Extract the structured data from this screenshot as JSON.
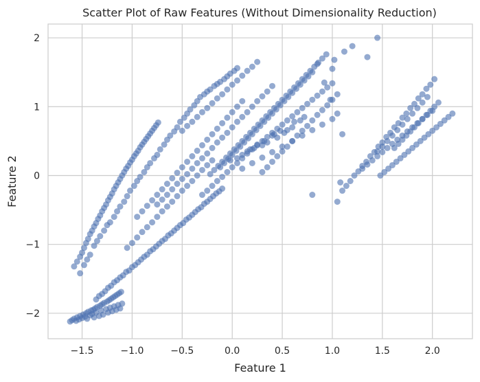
{
  "chart_data": {
    "type": "scatter",
    "title": "Scatter Plot of Raw Features (Without Dimensionality Reduction)",
    "xlabel": "Feature 1",
    "ylabel": "Feature 2",
    "xlim": [
      -1.84,
      2.4
    ],
    "ylim": [
      -2.37,
      2.2
    ],
    "xticks": [
      -1.5,
      -1.0,
      -0.5,
      0.0,
      0.5,
      1.0,
      1.5,
      2.0
    ],
    "xtick_labels": [
      "−1.5",
      "−1.0",
      "−0.5",
      "0.0",
      "0.5",
      "1.0",
      "1.5",
      "2.0"
    ],
    "yticks": [
      -2,
      -1,
      0,
      1,
      2
    ],
    "ytick_labels": [
      "−2",
      "−1",
      "0",
      "1",
      "2"
    ],
    "grid": true,
    "legend": "none",
    "marker_color": "#4c72b0",
    "marker_alpha": 0.6,
    "series": [
      {
        "x": [
          -1.62,
          -1.6,
          -1.58,
          -1.56,
          -1.55,
          -1.53,
          -1.52,
          -1.5,
          -1.49,
          -1.47,
          -1.46,
          -1.45,
          -1.44,
          -1.42,
          -1.41,
          -1.4,
          -1.39,
          -1.38,
          -1.37,
          -1.36,
          -1.35,
          -1.33,
          -1.32,
          -1.31,
          -1.3,
          -1.29,
          -1.28,
          -1.26,
          -1.25,
          -1.24,
          -1.23,
          -1.22,
          -1.21,
          -1.2,
          -1.19,
          -1.18,
          -1.17,
          -1.16,
          -1.15,
          -1.14,
          -1.13,
          -1.12,
          -1.11,
          -1.1,
          -1.58,
          -1.55,
          -1.52,
          -1.5,
          -1.48,
          -1.46,
          -1.44,
          -1.42,
          -1.4,
          -1.38,
          -1.36,
          -1.34,
          -1.32,
          -1.3,
          -1.28,
          -1.26,
          -1.24,
          -1.22,
          -1.2,
          -1.18,
          -1.16,
          -1.14,
          -1.12,
          -1.1,
          -1.08,
          -1.06,
          -1.04,
          -1.02,
          -1.0,
          -0.98,
          -0.96,
          -0.94,
          -0.92,
          -0.9,
          -0.88,
          -0.86,
          -0.84,
          -0.82,
          -0.8,
          -0.78,
          -0.76,
          -0.74,
          -1.36,
          -1.33,
          -1.3,
          -1.27,
          -1.24,
          -1.21,
          -1.18,
          -1.15,
          -1.12,
          -1.09,
          -1.06,
          -1.03,
          -1.0,
          -0.97,
          -0.94,
          -0.91,
          -0.88,
          -0.85,
          -0.82,
          -0.79,
          -0.76,
          -0.73,
          -0.7,
          -0.67,
          -0.64,
          -0.61,
          -0.58,
          -0.55,
          -0.52,
          -0.49,
          -0.46,
          -0.43,
          -0.4,
          -0.37,
          -0.34,
          -0.31,
          -0.28,
          -0.25,
          -0.22,
          -0.19,
          -0.16,
          -0.13,
          -0.1,
          -1.52,
          -1.48,
          -1.45,
          -1.42,
          -1.38,
          -1.35,
          -1.32,
          -1.28,
          -1.25,
          -1.22,
          -1.18,
          -1.15,
          -1.12,
          -1.08,
          -1.05,
          -1.02,
          -0.98,
          -0.95,
          -0.92,
          -0.88,
          -0.85,
          -0.82,
          -0.78,
          -0.75,
          -0.72,
          -0.68,
          -0.65,
          -0.62,
          -0.58,
          -0.55,
          -0.52,
          -0.48,
          -0.45,
          -0.42,
          -0.38,
          -0.35,
          -0.32,
          -0.28,
          -0.25,
          -0.22,
          -0.18,
          -0.15,
          -0.12,
          -0.08,
          -0.05,
          -0.02,
          0.02,
          0.05,
          -0.3,
          -0.25,
          -0.2,
          -0.15,
          -0.1,
          -0.05,
          0.0,
          0.05,
          0.1,
          0.15,
          0.2,
          0.25,
          0.3,
          0.35,
          0.4,
          0.45,
          0.5,
          0.55,
          0.6,
          0.65,
          0.7,
          0.75,
          0.8,
          0.85,
          0.9,
          0.95,
          1.0,
          -0.22,
          -0.18,
          -0.14,
          -0.1,
          -0.06,
          -0.02,
          0.02,
          0.06,
          0.1,
          0.14,
          0.18,
          0.22,
          0.26,
          0.3,
          0.34,
          0.38,
          0.42,
          0.46,
          0.5,
          0.54,
          0.58,
          0.62,
          0.66,
          0.7,
          0.74,
          0.78,
          0.82,
          0.86,
          0.9,
          0.94,
          -0.12,
          -0.08,
          -0.04,
          0.0,
          0.04,
          0.08,
          0.12,
          0.16,
          0.2,
          0.24,
          0.28,
          0.32,
          0.36,
          0.4,
          0.44,
          0.48,
          0.52,
          0.56,
          0.6,
          0.64,
          0.68,
          0.72,
          0.76,
          0.8,
          -0.5,
          -0.45,
          -0.4,
          -0.35,
          -0.3,
          -0.25,
          -0.2,
          -0.15,
          -0.1,
          -0.05,
          0.0,
          0.05,
          0.1,
          0.15,
          0.2,
          0.25,
          0.3,
          0.35,
          0.4,
          0.45,
          0.5,
          0.55,
          0.6,
          0.65,
          0.7,
          0.75,
          0.8,
          0.85,
          0.9,
          0.95,
          1.0,
          1.05,
          -0.75,
          -0.7,
          -0.65,
          -0.6,
          -0.55,
          -0.5,
          -0.45,
          -0.4,
          -0.35,
          -0.3,
          -0.25,
          -0.2,
          -0.15,
          -0.1,
          -0.05,
          0.0,
          0.05,
          0.1,
          0.15,
          0.2,
          0.25,
          0.3,
          0.35,
          0.4,
          -0.95,
          -0.9,
          -0.85,
          -0.8,
          -0.75,
          -0.7,
          -0.65,
          -0.6,
          -0.55,
          -0.5,
          -0.45,
          -0.4,
          -0.35,
          -0.3,
          -0.25,
          -0.2,
          -0.15,
          -0.1,
          -0.05,
          0.0,
          0.05,
          0.1,
          -1.05,
          -1.0,
          -0.95,
          -0.9,
          -0.85,
          -0.8,
          -0.75,
          -0.7,
          -0.65,
          -0.6,
          -0.55,
          -0.5,
          -0.45,
          -0.4,
          -0.35,
          -0.3,
          -0.25,
          -0.2,
          0.1,
          0.2,
          0.3,
          0.4,
          0.5,
          0.6,
          0.7,
          0.8,
          0.9,
          1.0,
          1.05,
          0.98,
          0.92,
          0.85,
          1.48,
          1.52,
          1.56,
          1.6,
          1.64,
          1.68,
          1.72,
          1.76,
          1.8,
          1.84,
          1.88,
          1.92,
          1.96,
          2.0,
          2.04,
          2.08,
          2.12,
          2.16,
          2.2,
          1.3,
          1.35,
          1.4,
          1.45,
          1.5,
          1.55,
          1.6,
          1.65,
          1.7,
          1.75,
          1.8,
          1.85,
          1.9,
          1.95,
          2.0,
          1.1,
          1.14,
          1.18,
          1.22,
          1.26,
          1.3,
          1.34,
          1.38,
          1.42,
          1.46,
          1.5,
          1.54,
          1.58,
          1.62,
          1.66,
          1.7,
          1.74,
          1.78,
          1.82,
          1.86,
          1.9,
          1.94,
          1.98,
          2.02,
          1.62,
          1.66,
          1.7,
          1.74,
          1.78,
          1.82,
          1.86,
          1.9,
          1.94,
          1.98,
          2.02,
          2.06,
          1.45,
          1.5,
          1.55,
          1.6,
          1.65,
          1.7,
          1.75,
          1.8,
          1.85,
          1.9,
          1.95,
          1.08,
          1.05,
          1.1,
          0.8,
          1.45,
          1.35,
          1.2,
          1.12,
          1.02,
          1.0,
          -0.02,
          0.45,
          0.1,
          0.35,
          0.6,
          0.22,
          0.52,
          0.15,
          0.4,
          0.68,
          0.3,
          0.55,
          0.05,
          0.25,
          0.48,
          0.72,
          0.18,
          0.42,
          0.62,
          0.32
        ],
        "y": [
          -2.12,
          -2.1,
          -2.08,
          -2.11,
          -2.06,
          -2.09,
          -2.04,
          -2.07,
          -2.02,
          -2.05,
          -2.0,
          -2.08,
          -1.98,
          -2.03,
          -1.96,
          -2.01,
          -1.95,
          -2.06,
          -1.93,
          -1.99,
          -1.91,
          -2.04,
          -1.89,
          -1.96,
          -1.87,
          -2.02,
          -1.85,
          -1.94,
          -1.83,
          -1.99,
          -1.81,
          -1.92,
          -1.79,
          -1.97,
          -1.77,
          -1.9,
          -1.75,
          -1.95,
          -1.73,
          -1.88,
          -1.71,
          -1.93,
          -1.69,
          -1.86,
          -1.32,
          -1.25,
          -1.18,
          -1.12,
          -1.05,
          -0.98,
          -0.92,
          -0.85,
          -0.8,
          -0.74,
          -0.69,
          -0.63,
          -0.58,
          -0.52,
          -0.47,
          -0.42,
          -0.36,
          -0.31,
          -0.26,
          -0.2,
          -0.15,
          -0.1,
          -0.05,
          0.0,
          0.05,
          0.1,
          0.14,
          0.19,
          0.23,
          0.28,
          0.32,
          0.36,
          0.41,
          0.45,
          0.49,
          0.53,
          0.57,
          0.61,
          0.65,
          0.69,
          0.73,
          0.77,
          -1.8,
          -1.75,
          -1.72,
          -1.68,
          -1.63,
          -1.6,
          -1.55,
          -1.52,
          -1.48,
          -1.45,
          -1.4,
          -1.38,
          -1.33,
          -1.3,
          -1.26,
          -1.22,
          -1.18,
          -1.15,
          -1.1,
          -1.07,
          -1.03,
          -0.99,
          -0.95,
          -0.92,
          -0.87,
          -0.84,
          -0.8,
          -0.76,
          -0.72,
          -0.69,
          -0.64,
          -0.61,
          -0.57,
          -0.53,
          -0.49,
          -0.46,
          -0.41,
          -0.38,
          -0.34,
          -0.3,
          -0.26,
          -0.23,
          -0.19,
          -1.42,
          -1.3,
          -1.22,
          -1.15,
          -1.02,
          -0.95,
          -0.88,
          -0.8,
          -0.72,
          -0.68,
          -0.6,
          -0.52,
          -0.45,
          -0.38,
          -0.3,
          -0.22,
          -0.15,
          -0.08,
          -0.02,
          0.05,
          0.12,
          0.18,
          0.25,
          0.3,
          0.38,
          0.45,
          0.52,
          0.58,
          0.64,
          0.7,
          0.78,
          0.84,
          0.9,
          0.96,
          1.02,
          1.08,
          1.14,
          1.18,
          1.22,
          1.25,
          1.3,
          1.33,
          1.36,
          1.4,
          1.44,
          1.48,
          1.52,
          1.56,
          -0.28,
          -0.22,
          -0.15,
          -0.08,
          -0.02,
          0.05,
          0.12,
          0.18,
          0.25,
          0.32,
          0.38,
          0.44,
          0.5,
          0.56,
          0.62,
          0.68,
          0.74,
          0.8,
          0.86,
          0.92,
          0.98,
          1.04,
          1.1,
          1.16,
          1.22,
          1.28,
          1.34,
          0.02,
          0.08,
          0.14,
          0.2,
          0.26,
          0.32,
          0.38,
          0.44,
          0.5,
          0.56,
          0.62,
          0.68,
          0.74,
          0.8,
          0.86,
          0.92,
          0.98,
          1.04,
          1.1,
          1.16,
          1.22,
          1.28,
          1.34,
          1.4,
          1.46,
          1.52,
          1.58,
          1.64,
          1.7,
          1.76,
          0.12,
          0.18,
          0.24,
          0.3,
          0.36,
          0.42,
          0.48,
          0.54,
          0.6,
          0.66,
          0.72,
          0.78,
          0.84,
          0.9,
          0.96,
          1.02,
          1.08,
          1.14,
          1.2,
          1.26,
          1.32,
          1.38,
          1.44,
          1.5,
          0.65,
          0.72,
          0.78,
          0.85,
          0.92,
          0.98,
          1.05,
          1.12,
          1.18,
          1.25,
          1.32,
          1.38,
          1.45,
          1.52,
          1.58,
          1.65,
          0.05,
          0.12,
          0.2,
          0.28,
          0.35,
          0.42,
          0.5,
          0.58,
          0.65,
          0.72,
          0.8,
          0.88,
          0.95,
          1.02,
          1.1,
          1.18,
          -0.42,
          -0.35,
          -0.28,
          -0.2,
          -0.12,
          -0.05,
          0.02,
          0.1,
          0.18,
          0.25,
          0.32,
          0.4,
          0.48,
          0.55,
          0.62,
          0.7,
          0.78,
          0.85,
          0.92,
          1.0,
          1.08,
          1.15,
          1.22,
          1.3,
          -0.6,
          -0.52,
          -0.44,
          -0.36,
          -0.28,
          -0.2,
          -0.12,
          -0.04,
          0.04,
          0.12,
          0.2,
          0.28,
          0.36,
          0.44,
          0.52,
          0.6,
          0.68,
          0.76,
          0.84,
          0.92,
          1.0,
          1.08,
          -1.05,
          -0.98,
          -0.9,
          -0.82,
          -0.75,
          -0.68,
          -0.6,
          -0.52,
          -0.45,
          -0.38,
          -0.3,
          -0.22,
          -0.15,
          -0.08,
          0.0,
          0.08,
          0.15,
          0.22,
          0.1,
          0.18,
          0.26,
          0.34,
          0.42,
          0.5,
          0.58,
          0.66,
          0.74,
          0.82,
          0.9,
          1.1,
          1.35,
          1.62,
          0.0,
          0.05,
          0.1,
          0.15,
          0.2,
          0.25,
          0.3,
          0.35,
          0.4,
          0.45,
          0.5,
          0.55,
          0.6,
          0.65,
          0.7,
          0.75,
          0.8,
          0.85,
          0.9,
          0.1,
          0.16,
          0.22,
          0.28,
          0.34,
          0.4,
          0.46,
          0.52,
          0.58,
          0.64,
          0.7,
          0.76,
          0.82,
          0.88,
          0.94,
          -0.22,
          -0.15,
          -0.08,
          0.0,
          0.06,
          0.14,
          0.2,
          0.28,
          0.34,
          0.42,
          0.48,
          0.56,
          0.62,
          0.7,
          0.76,
          0.84,
          0.9,
          0.98,
          1.04,
          1.12,
          1.18,
          1.26,
          1.32,
          1.4,
          0.4,
          0.46,
          0.52,
          0.58,
          0.64,
          0.7,
          0.76,
          0.82,
          0.88,
          0.94,
          1.0,
          1.06,
          0.35,
          0.42,
          0.5,
          0.58,
          0.66,
          0.74,
          0.82,
          0.9,
          0.98,
          1.06,
          1.14,
          -0.1,
          -0.38,
          0.6,
          -0.28,
          2.0,
          1.72,
          1.88,
          1.8,
          1.68,
          1.55,
          0.22,
          0.55,
          0.3,
          0.48,
          0.7,
          0.4,
          0.62,
          0.35,
          0.58,
          0.8,
          0.44,
          0.66,
          0.25,
          0.45,
          0.65,
          0.85,
          0.38,
          0.6,
          0.78,
          0.5
        ]
      }
    ]
  }
}
